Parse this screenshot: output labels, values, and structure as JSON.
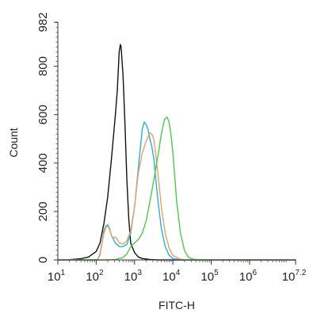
{
  "chart_data": {
    "type": "line",
    "xlabel": "FITC-H",
    "ylabel": "Count",
    "x_scale": "log10",
    "xlim": [
      1,
      7.2
    ],
    "ylim": [
      0,
      982
    ],
    "x_ticks": [
      {
        "base": "10",
        "exp": "1",
        "value": 1
      },
      {
        "base": "10",
        "exp": "2",
        "value": 2
      },
      {
        "base": "10",
        "exp": "3",
        "value": 3
      },
      {
        "base": "10",
        "exp": "4",
        "value": 4
      },
      {
        "base": "10",
        "exp": "5",
        "value": 5
      },
      {
        "base": "10",
        "exp": "6",
        "value": 6
      },
      {
        "base": "10",
        "exp": "7.2",
        "value": 7.2
      }
    ],
    "y_ticks": [
      {
        "label": "0",
        "value": 0
      },
      {
        "label": "200",
        "value": 200
      },
      {
        "label": "400",
        "value": 400
      },
      {
        "label": "600",
        "value": 600
      },
      {
        "label": "800",
        "value": 800
      },
      {
        "label": "982",
        "value": 982
      }
    ],
    "grid": false,
    "legend": "none",
    "series": [
      {
        "color": "#111111",
        "points": [
          [
            1.0,
            0
          ],
          [
            1.3,
            1
          ],
          [
            1.6,
            5
          ],
          [
            1.8,
            12
          ],
          [
            2.0,
            35
          ],
          [
            2.1,
            70
          ],
          [
            2.2,
            150
          ],
          [
            2.3,
            260
          ],
          [
            2.4,
            420
          ],
          [
            2.5,
            600
          ],
          [
            2.55,
            700
          ],
          [
            2.6,
            860
          ],
          [
            2.63,
            890
          ],
          [
            2.65,
            880
          ],
          [
            2.7,
            760
          ],
          [
            2.75,
            560
          ],
          [
            2.8,
            330
          ],
          [
            2.85,
            170
          ],
          [
            2.9,
            70
          ],
          [
            3.0,
            30
          ],
          [
            3.1,
            12
          ],
          [
            3.2,
            6
          ],
          [
            3.4,
            2
          ],
          [
            3.6,
            0
          ],
          [
            7.2,
            0
          ]
        ]
      },
      {
        "color": "#29b0d6",
        "points": [
          [
            1.0,
            0
          ],
          [
            2.0,
            0
          ],
          [
            2.05,
            5
          ],
          [
            2.1,
            25
          ],
          [
            2.15,
            70
          ],
          [
            2.2,
            120
          ],
          [
            2.25,
            140
          ],
          [
            2.3,
            145
          ],
          [
            2.35,
            130
          ],
          [
            2.4,
            100
          ],
          [
            2.5,
            70
          ],
          [
            2.6,
            55
          ],
          [
            2.7,
            55
          ],
          [
            2.8,
            65
          ],
          [
            2.9,
            110
          ],
          [
            3.0,
            220
          ],
          [
            3.1,
            380
          ],
          [
            3.15,
            460
          ],
          [
            3.2,
            540
          ],
          [
            3.25,
            570
          ],
          [
            3.3,
            560
          ],
          [
            3.35,
            540
          ],
          [
            3.4,
            500
          ],
          [
            3.45,
            470
          ],
          [
            3.5,
            420
          ],
          [
            3.55,
            340
          ],
          [
            3.6,
            260
          ],
          [
            3.7,
            130
          ],
          [
            3.8,
            55
          ],
          [
            3.9,
            20
          ],
          [
            4.0,
            6
          ],
          [
            4.2,
            0
          ],
          [
            7.2,
            0
          ]
        ]
      },
      {
        "color": "#e8a06c",
        "points": [
          [
            1.0,
            0
          ],
          [
            2.0,
            0
          ],
          [
            2.05,
            4
          ],
          [
            2.1,
            20
          ],
          [
            2.15,
            65
          ],
          [
            2.2,
            110
          ],
          [
            2.25,
            135
          ],
          [
            2.3,
            140
          ],
          [
            2.35,
            125
          ],
          [
            2.4,
            100
          ],
          [
            2.45,
            90
          ],
          [
            2.5,
            95
          ],
          [
            2.55,
            85
          ],
          [
            2.6,
            70
          ],
          [
            2.7,
            65
          ],
          [
            2.8,
            80
          ],
          [
            2.9,
            120
          ],
          [
            3.0,
            220
          ],
          [
            3.1,
            360
          ],
          [
            3.2,
            440
          ],
          [
            3.3,
            490
          ],
          [
            3.4,
            525
          ],
          [
            3.45,
            520
          ],
          [
            3.5,
            500
          ],
          [
            3.55,
            440
          ],
          [
            3.6,
            370
          ],
          [
            3.7,
            220
          ],
          [
            3.8,
            110
          ],
          [
            3.9,
            50
          ],
          [
            4.0,
            18
          ],
          [
            4.2,
            3
          ],
          [
            4.4,
            0
          ],
          [
            7.2,
            0
          ]
        ]
      },
      {
        "color": "#4ec84e",
        "points": [
          [
            1.0,
            0
          ],
          [
            2.3,
            0
          ],
          [
            2.5,
            2
          ],
          [
            2.7,
            10
          ],
          [
            2.8,
            25
          ],
          [
            2.9,
            55
          ],
          [
            3.0,
            70
          ],
          [
            3.1,
            85
          ],
          [
            3.2,
            110
          ],
          [
            3.3,
            160
          ],
          [
            3.4,
            240
          ],
          [
            3.5,
            330
          ],
          [
            3.6,
            420
          ],
          [
            3.7,
            520
          ],
          [
            3.78,
            580
          ],
          [
            3.85,
            590
          ],
          [
            3.9,
            570
          ],
          [
            3.95,
            520
          ],
          [
            4.0,
            440
          ],
          [
            4.05,
            340
          ],
          [
            4.1,
            240
          ],
          [
            4.2,
            110
          ],
          [
            4.3,
            40
          ],
          [
            4.4,
            12
          ],
          [
            4.5,
            4
          ],
          [
            4.7,
            0
          ],
          [
            7.2,
            0
          ]
        ]
      }
    ]
  }
}
